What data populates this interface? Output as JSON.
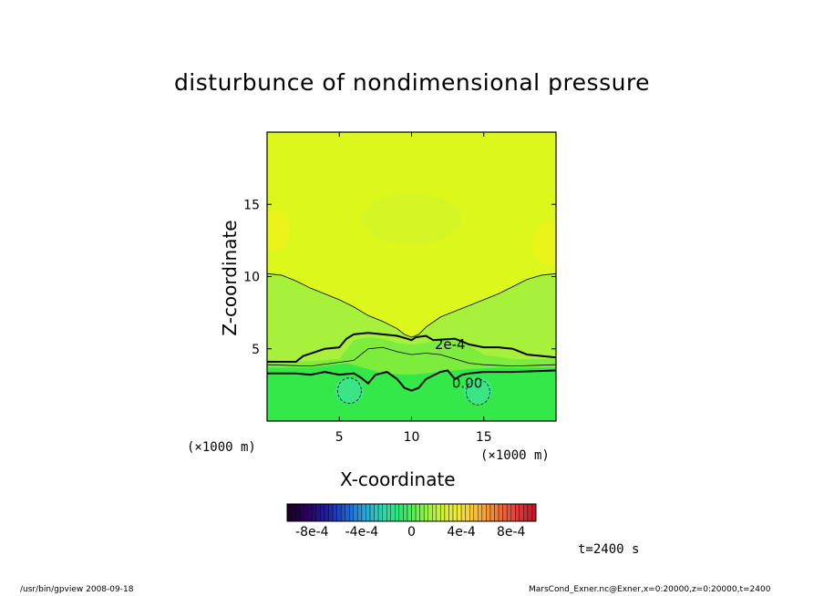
{
  "chart_data": {
    "type": "heatmap",
    "title": "disturbunce of nondimensional pressure",
    "xlabel": "X-coordinate",
    "ylabel": "Z-coordinate",
    "x_unit": "(×1000 m)",
    "z_unit": "(×1000 m)",
    "xlim": [
      0,
      20
    ],
    "ylim": [
      0,
      20
    ],
    "x_ticks": [
      "5",
      "10",
      "15"
    ],
    "y_ticks": [
      "5",
      "10",
      "15"
    ],
    "contour_labels": [
      "2e-4",
      "0.00"
    ],
    "colorbar": {
      "range": [
        -0.001,
        0.001
      ],
      "tick_labels": [
        "-8e-4",
        "-4e-4",
        "0",
        "4e-4",
        "8e-4"
      ],
      "colors": [
        "#1a0026",
        "#2b0060",
        "#1f1fa0",
        "#1e5ad0",
        "#2aa6d8",
        "#33d6a8",
        "#2ee86a",
        "#7ef04a",
        "#c8f03c",
        "#f0e83c",
        "#f5b83c",
        "#f07a3c",
        "#e0403c",
        "#c01a2a"
      ]
    },
    "field_colors": {
      "upper": "#dcf71c",
      "middle": "#a7f03c",
      "lower": "#34e84a",
      "bottom_spots": "#3ee4a0"
    },
    "time_label": "t=2400 s"
  },
  "footer": {
    "left": "/usr/bin/gpview   2008-09-18",
    "right": "MarsCond_Exner.nc@Exner,x=0:20000,z=0:20000,t=2400"
  }
}
